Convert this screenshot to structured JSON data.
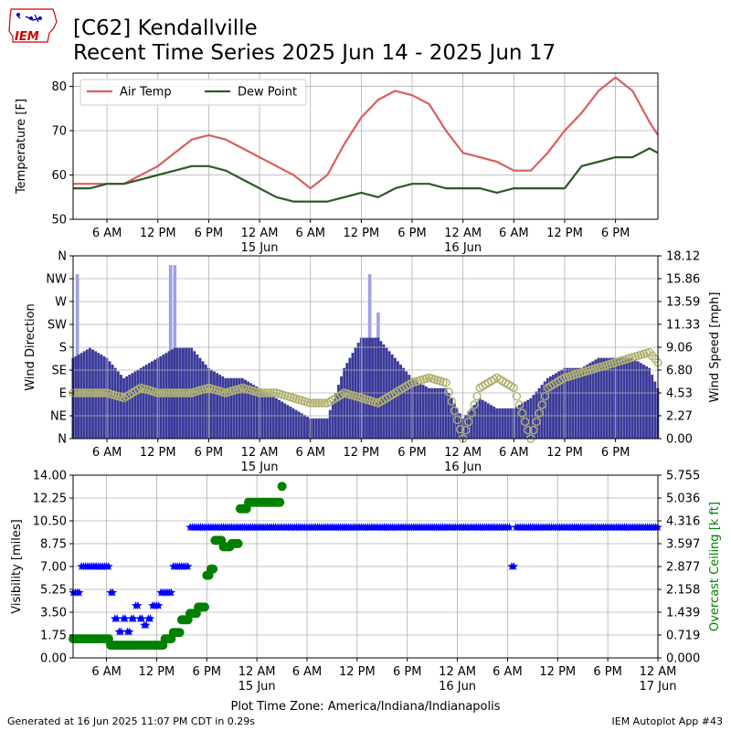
{
  "header": {
    "logo_text": "IEM",
    "title_line1": "[C62] Kendallville",
    "title_line2": "Recent Time Series 2025 Jun 14 - 2025 Jun 17"
  },
  "footer": {
    "generated": "Generated at 16 Jun 2025 11:07 PM CDT in 0.29s",
    "app": "IEM Autoplot App #43"
  },
  "colors": {
    "air_temp": "#d95f5f",
    "dew_point": "#2d5a27",
    "wind_bar": "#393999",
    "gust_bar": "#9f9fe8",
    "wind_dir": "#b0b070",
    "visibility": "#0000ff",
    "ceiling": "#008000"
  },
  "chart_data": [
    {
      "type": "line",
      "ylabel": "Temperature [F]",
      "ylim": [
        50,
        83
      ],
      "yticks": [
        "50",
        "60",
        "70",
        "80"
      ],
      "x_start": "2025-06-14 02:00",
      "x_end": "2025-06-16 23:00",
      "x_ticks": [
        "6 AM",
        "12 PM",
        "6 PM",
        "12 AM",
        "6 AM",
        "12 PM",
        "6 PM",
        "12 AM",
        "6 AM",
        "12 PM",
        "6 PM"
      ],
      "x_date_labels": [
        "15 Jun",
        "16 Jun"
      ],
      "legend": {
        "placement": "top-left",
        "entries": [
          "Air Temp",
          "Dew Point"
        ]
      },
      "grid": true,
      "series": [
        {
          "name": "Air Temp",
          "x": [
            "2025-06-14 02:00",
            "2025-06-14 04:00",
            "2025-06-14 06:00",
            "2025-06-14 08:00",
            "2025-06-14 10:00",
            "2025-06-14 12:00",
            "2025-06-14 14:00",
            "2025-06-14 16:00",
            "2025-06-14 18:00",
            "2025-06-14 20:00",
            "2025-06-14 22:00",
            "2025-06-15 00:00",
            "2025-06-15 02:00",
            "2025-06-15 04:00",
            "2025-06-15 06:00",
            "2025-06-15 08:00",
            "2025-06-15 10:00",
            "2025-06-15 12:00",
            "2025-06-15 14:00",
            "2025-06-15 16:00",
            "2025-06-15 18:00",
            "2025-06-15 20:00",
            "2025-06-15 22:00",
            "2025-06-16 00:00",
            "2025-06-16 02:00",
            "2025-06-16 04:00",
            "2025-06-16 06:00",
            "2025-06-16 08:00",
            "2025-06-16 10:00",
            "2025-06-16 12:00",
            "2025-06-16 14:00",
            "2025-06-16 16:00",
            "2025-06-16 18:00",
            "2025-06-16 20:00",
            "2025-06-16 22:00",
            "2025-06-16 23:00"
          ],
          "values": [
            58,
            58,
            58,
            58,
            60,
            62,
            65,
            68,
            69,
            68,
            66,
            64,
            62,
            60,
            57,
            60,
            67,
            73,
            77,
            79,
            78,
            76,
            70,
            65,
            64,
            63,
            61,
            61,
            65,
            70,
            74,
            79,
            82,
            79,
            72,
            69
          ]
        },
        {
          "name": "Dew Point",
          "x": [
            "2025-06-14 02:00",
            "2025-06-14 04:00",
            "2025-06-14 06:00",
            "2025-06-14 08:00",
            "2025-06-14 10:00",
            "2025-06-14 12:00",
            "2025-06-14 14:00",
            "2025-06-14 16:00",
            "2025-06-14 18:00",
            "2025-06-14 20:00",
            "2025-06-14 22:00",
            "2025-06-15 00:00",
            "2025-06-15 02:00",
            "2025-06-15 04:00",
            "2025-06-15 06:00",
            "2025-06-15 08:00",
            "2025-06-15 10:00",
            "2025-06-15 12:00",
            "2025-06-15 14:00",
            "2025-06-15 16:00",
            "2025-06-15 18:00",
            "2025-06-15 20:00",
            "2025-06-15 22:00",
            "2025-06-16 00:00",
            "2025-06-16 02:00",
            "2025-06-16 04:00",
            "2025-06-16 06:00",
            "2025-06-16 08:00",
            "2025-06-16 10:00",
            "2025-06-16 12:00",
            "2025-06-16 14:00",
            "2025-06-16 16:00",
            "2025-06-16 18:00",
            "2025-06-16 20:00",
            "2025-06-16 22:00",
            "2025-06-16 23:00"
          ],
          "values": [
            57,
            57,
            58,
            58,
            59,
            60,
            61,
            62,
            62,
            61,
            59,
            57,
            55,
            54,
            54,
            54,
            55,
            56,
            55,
            57,
            58,
            58,
            57,
            57,
            57,
            56,
            57,
            57,
            57,
            57,
            62,
            63,
            64,
            64,
            66,
            65
          ]
        }
      ]
    },
    {
      "type": "bar",
      "ylabel": "Wind Direction",
      "y2label": "Wind Speed [mph]",
      "direction_ticks": [
        "N",
        "NE",
        "E",
        "SE",
        "S",
        "SW",
        "W",
        "NW",
        "N"
      ],
      "speed_ticks": [
        "0.00",
        "2.27",
        "4.53",
        "6.80",
        "9.06",
        "11.33",
        "13.59",
        "15.86",
        "18.12"
      ],
      "speed_lim": [
        0,
        18.12
      ],
      "grid": true,
      "series": [
        {
          "name": "Wind Speed",
          "x": [
            "2025-06-14 02:00",
            "2025-06-14 04:00",
            "2025-06-14 06:00",
            "2025-06-14 08:00",
            "2025-06-14 10:00",
            "2025-06-14 12:00",
            "2025-06-14 14:00",
            "2025-06-14 16:00",
            "2025-06-14 18:00",
            "2025-06-14 20:00",
            "2025-06-14 22:00",
            "2025-06-15 00:00",
            "2025-06-15 02:00",
            "2025-06-15 04:00",
            "2025-06-15 06:00",
            "2025-06-15 08:00",
            "2025-06-15 10:00",
            "2025-06-15 12:00",
            "2025-06-15 14:00",
            "2025-06-15 16:00",
            "2025-06-15 18:00",
            "2025-06-15 20:00",
            "2025-06-15 22:00",
            "2025-06-16 00:00",
            "2025-06-16 02:00",
            "2025-06-16 04:00",
            "2025-06-16 06:00",
            "2025-06-16 08:00",
            "2025-06-16 10:00",
            "2025-06-16 12:00",
            "2025-06-16 14:00",
            "2025-06-16 16:00",
            "2025-06-16 18:00",
            "2025-06-16 20:00",
            "2025-06-16 22:00",
            "2025-06-16 23:00"
          ],
          "values": [
            8,
            9,
            8,
            6,
            7,
            8,
            9,
            9,
            7,
            6,
            6,
            5,
            4,
            3,
            2,
            2,
            7,
            10,
            10,
            8,
            6,
            5,
            5,
            2,
            4,
            3,
            3,
            4,
            6,
            7,
            7,
            8,
            8,
            8,
            7,
            5
          ]
        },
        {
          "name": "Wind Gust",
          "x": [
            "2025-06-14 02:30",
            "2025-06-14 13:30",
            "2025-06-14 14:00",
            "2025-06-15 13:00",
            "2025-06-15 14:00"
          ],
          "values": [
            16.3,
            17.2,
            17.2,
            16.3,
            12.5
          ]
        },
        {
          "name": "Wind Direction",
          "x": [
            "2025-06-14 02:00",
            "2025-06-14 04:00",
            "2025-06-14 06:00",
            "2025-06-14 08:00",
            "2025-06-14 10:00",
            "2025-06-14 12:00",
            "2025-06-14 14:00",
            "2025-06-14 16:00",
            "2025-06-14 18:00",
            "2025-06-14 20:00",
            "2025-06-14 22:00",
            "2025-06-15 00:00",
            "2025-06-15 02:00",
            "2025-06-15 04:00",
            "2025-06-15 06:00",
            "2025-06-15 08:00",
            "2025-06-15 10:00",
            "2025-06-15 12:00",
            "2025-06-15 14:00",
            "2025-06-15 16:00",
            "2025-06-15 18:00",
            "2025-06-15 20:00",
            "2025-06-15 22:00",
            "2025-06-16 00:00",
            "2025-06-16 02:00",
            "2025-06-16 04:00",
            "2025-06-16 06:00",
            "2025-06-16 08:00",
            "2025-06-16 10:00",
            "2025-06-16 12:00",
            "2025-06-16 14:00",
            "2025-06-16 16:00",
            "2025-06-16 18:00",
            "2025-06-16 20:00",
            "2025-06-16 22:00",
            "2025-06-16 23:00"
          ],
          "values": [
            90,
            90,
            90,
            80,
            100,
            90,
            90,
            90,
            100,
            90,
            100,
            90,
            90,
            80,
            70,
            70,
            90,
            80,
            70,
            90,
            110,
            120,
            110,
            0,
            100,
            120,
            100,
            0,
            100,
            120,
            130,
            140,
            150,
            160,
            170,
            150
          ]
        }
      ]
    },
    {
      "type": "scatter",
      "ylabel": "Visibility [miles]",
      "y2label": "Overcast Ceiling [k ft]",
      "vis_ticks": [
        "0.00",
        "1.75",
        "3.50",
        "5.25",
        "7.00",
        "8.75",
        "10.50",
        "12.25",
        "14.00"
      ],
      "vis_lim": [
        0,
        14
      ],
      "ceiling_ticks": [
        "0.000",
        "0.719",
        "1.439",
        "2.158",
        "2.877",
        "3.597",
        "4.316",
        "5.036",
        "5.755"
      ],
      "ceiling_lim": [
        0,
        5.755
      ],
      "xlabel": "Plot Time Zone: America/Indiana/Indianapolis",
      "x_ticks": [
        "6 AM",
        "12 PM",
        "6 PM",
        "12 AM",
        "6 AM",
        "12 PM",
        "6 PM",
        "12 AM",
        "6 AM",
        "12 PM",
        "6 PM",
        "12 AM"
      ],
      "x_date_labels": [
        "15 Jun",
        "16 Jun",
        "17 Jun"
      ],
      "grid": true,
      "series": [
        {
          "name": "Visibility",
          "x": [
            "2025-06-14 02:00",
            "2025-06-14 03:00",
            "2025-06-14 04:00",
            "2025-06-14 05:00",
            "2025-06-14 06:00",
            "2025-06-14 06:30",
            "2025-06-14 07:00",
            "2025-06-14 07:30",
            "2025-06-14 08:00",
            "2025-06-14 08:30",
            "2025-06-14 09:00",
            "2025-06-14 09:30",
            "2025-06-14 10:00",
            "2025-06-14 10:30",
            "2025-06-14 11:00",
            "2025-06-14 11:30",
            "2025-06-14 12:00",
            "2025-06-14 12:30",
            "2025-06-14 13:00",
            "2025-06-14 14:00",
            "2025-06-14 15:00",
            "2025-06-14 15:30",
            "2025-06-14 16:00",
            "2025-06-14 18:00",
            "2025-06-14 21:00",
            "2025-06-15 00:00",
            "2025-06-15 06:00",
            "2025-06-15 12:00",
            "2025-06-15 18:00",
            "2025-06-16 00:00",
            "2025-06-16 06:00",
            "2025-06-16 06:30",
            "2025-06-16 07:00",
            "2025-06-16 12:00",
            "2025-06-16 18:00",
            "2025-06-17 00:00"
          ],
          "values": [
            5,
            7,
            7,
            7,
            7,
            5,
            3,
            2,
            3,
            2,
            3,
            4,
            3,
            2.5,
            3,
            4,
            4,
            5,
            5,
            7,
            7,
            7,
            10,
            10,
            10,
            10,
            10,
            10,
            10,
            10,
            10,
            7,
            10,
            10,
            10,
            10
          ]
        },
        {
          "name": "Overcast Ceiling",
          "x": [
            "2025-06-14 02:00",
            "2025-06-14 04:00",
            "2025-06-14 06:00",
            "2025-06-14 06:30",
            "2025-06-14 08:00",
            "2025-06-14 10:00",
            "2025-06-14 12:00",
            "2025-06-14 13:00",
            "2025-06-14 14:00",
            "2025-06-14 15:00",
            "2025-06-14 16:00",
            "2025-06-14 17:00",
            "2025-06-14 18:00",
            "2025-06-14 18:30",
            "2025-06-14 19:00",
            "2025-06-14 20:00",
            "2025-06-14 21:00",
            "2025-06-14 22:00",
            "2025-06-14 23:00",
            "2025-06-15 00:00",
            "2025-06-15 01:00",
            "2025-06-15 02:00",
            "2025-06-15 03:00"
          ],
          "values": [
            0.6,
            0.6,
            0.6,
            0.4,
            0.4,
            0.4,
            0.4,
            0.6,
            0.8,
            1.2,
            1.4,
            1.6,
            2.6,
            2.8,
            3.7,
            3.5,
            3.6,
            4.7,
            4.9,
            4.9,
            4.9,
            4.9,
            5.4
          ]
        }
      ]
    }
  ]
}
